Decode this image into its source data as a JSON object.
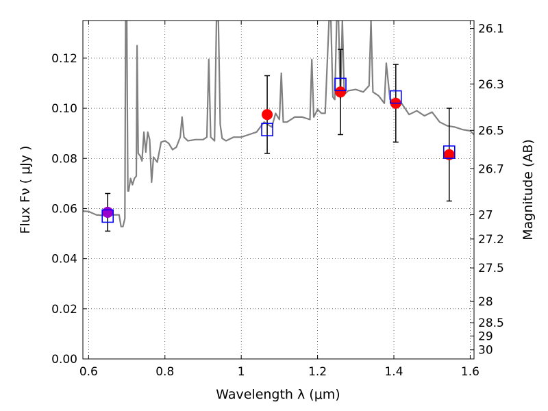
{
  "chart_data": {
    "type": "scatter",
    "xlabel": "Wavelength  λ (μm)",
    "ylabel": "Flux  Fν  ( μJy )",
    "ylabel_right": "Magnitude (AB)",
    "xlim": [
      0.585,
      1.61
    ],
    "ylim": [
      0.0,
      0.135
    ],
    "grid": true,
    "x_ticks": [
      0.6,
      0.8,
      1.0,
      1.2,
      1.4,
      1.6
    ],
    "x_tick_labels": [
      "0.6",
      "0.8",
      "1",
      "1.2",
      "1.4",
      "1.6"
    ],
    "y_ticks": [
      0.0,
      0.02,
      0.04,
      0.06,
      0.08,
      0.1,
      0.12
    ],
    "y_tick_labels": [
      "0.00",
      "0.02",
      "0.04",
      "0.06",
      "0.08",
      "0.10",
      "0.12"
    ],
    "mag_ticks": [
      "26.1",
      "26.3",
      "26.5",
      "26.7",
      "27",
      "27.2",
      "27.5",
      "28",
      "28.5",
      "29",
      "30"
    ],
    "colors": {
      "model": "#808080",
      "observed": "#ff0000",
      "model_box": "#0000ff",
      "overlap": "#9a00cc",
      "errorbar": "#000000"
    },
    "series": [
      {
        "role": "model spectrum",
        "type": "line",
        "x": [
          0.585,
          0.6,
          0.62,
          0.64,
          0.66,
          0.68,
          0.685,
          0.69,
          0.695,
          0.697,
          0.7,
          0.703,
          0.705,
          0.71,
          0.715,
          0.72,
          0.725,
          0.727,
          0.73,
          0.735,
          0.74,
          0.745,
          0.75,
          0.755,
          0.76,
          0.765,
          0.77,
          0.78,
          0.79,
          0.8,
          0.81,
          0.82,
          0.83,
          0.84,
          0.845,
          0.85,
          0.86,
          0.88,
          0.9,
          0.91,
          0.915,
          0.92,
          0.93,
          0.935,
          0.94,
          0.945,
          0.95,
          0.96,
          0.98,
          1.0,
          1.02,
          1.04,
          1.06,
          1.08,
          1.09,
          1.1,
          1.105,
          1.11,
          1.12,
          1.14,
          1.16,
          1.18,
          1.185,
          1.19,
          1.2,
          1.21,
          1.22,
          1.23,
          1.235,
          1.24,
          1.245,
          1.25,
          1.255,
          1.26,
          1.265,
          1.27,
          1.28,
          1.3,
          1.32,
          1.335,
          1.34,
          1.345,
          1.36,
          1.375,
          1.38,
          1.39,
          1.4,
          1.42,
          1.44,
          1.46,
          1.48,
          1.5,
          1.52,
          1.54,
          1.56,
          1.58,
          1.6,
          1.61
        ],
        "y": [
          0.059,
          0.0588,
          0.0575,
          0.0572,
          0.0575,
          0.0575,
          0.0528,
          0.0528,
          0.056,
          0.135,
          0.135,
          0.067,
          0.067,
          0.072,
          0.0695,
          0.072,
          0.073,
          0.125,
          0.082,
          0.081,
          0.079,
          0.0905,
          0.0825,
          0.0905,
          0.0875,
          0.0705,
          0.0805,
          0.0785,
          0.0865,
          0.087,
          0.086,
          0.0835,
          0.0845,
          0.0885,
          0.0965,
          0.0885,
          0.087,
          0.0875,
          0.0875,
          0.0885,
          0.1195,
          0.0885,
          0.087,
          0.135,
          0.135,
          0.0935,
          0.088,
          0.087,
          0.0885,
          0.0885,
          0.0895,
          0.0905,
          0.0945,
          0.0925,
          0.098,
          0.0955,
          0.114,
          0.0945,
          0.0945,
          0.0965,
          0.0965,
          0.0955,
          0.1195,
          0.0965,
          0.0995,
          0.098,
          0.098,
          0.135,
          0.135,
          0.1045,
          0.1035,
          0.135,
          0.135,
          0.104,
          0.135,
          0.1055,
          0.107,
          0.1075,
          0.1065,
          0.109,
          0.135,
          0.1065,
          0.105,
          0.102,
          0.118,
          0.1035,
          0.1035,
          0.102,
          0.0975,
          0.099,
          0.097,
          0.0985,
          0.0945,
          0.093,
          0.0925,
          0.0915,
          0.091,
          0.0895
        ]
      },
      {
        "role": "observed photometry",
        "type": "scatter",
        "x": [
          0.65,
          1.068,
          1.26,
          1.405,
          1.545
        ],
        "y": [
          0.0585,
          0.0975,
          0.1065,
          0.102,
          0.0815
        ],
        "yerr": [
          0.0075,
          0.0155,
          0.017,
          0.0155,
          0.0185
        ]
      },
      {
        "role": "model photometry",
        "type": "scatter",
        "x": [
          0.65,
          1.068,
          1.26,
          1.405,
          1.545
        ],
        "y": [
          0.057,
          0.0915,
          0.1095,
          0.1045,
          0.0825
        ]
      }
    ]
  }
}
